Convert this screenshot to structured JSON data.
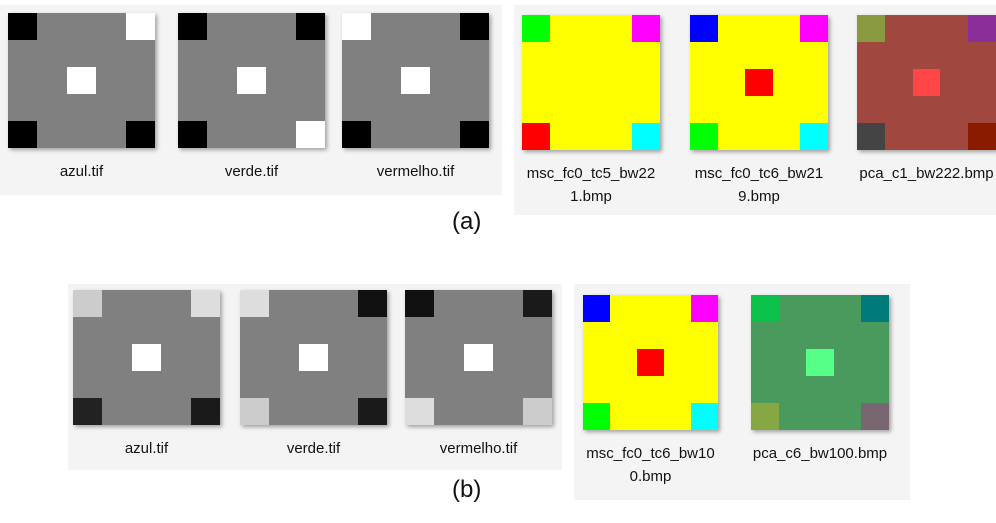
{
  "panels": [
    {
      "caption": "(a)",
      "files": [
        "azul.tif",
        "verde.tif",
        "vermelho.tif",
        "msc_fc0_tc5_bw221.bmp",
        "msc_fc0_tc6_bw219.bmp",
        "pca_c1_bw222.bmp"
      ]
    },
    {
      "caption": "(b)",
      "files": [
        "azul.tif",
        "verde.tif",
        "vermelho.tif",
        "msc_fc0_tc6_bw100.bmp",
        "pca_c6_bw100.bmp"
      ]
    }
  ]
}
